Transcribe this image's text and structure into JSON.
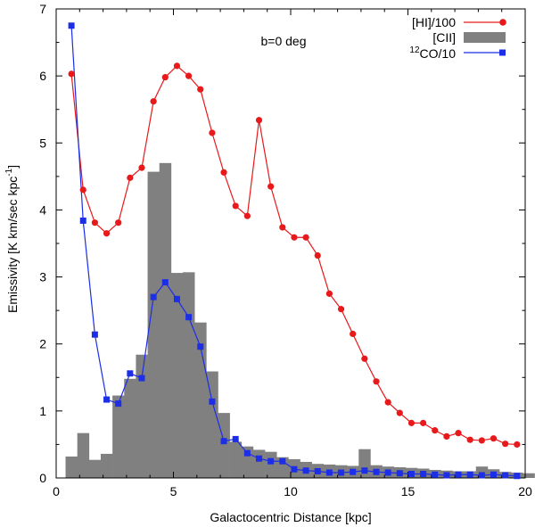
{
  "chart_data": {
    "type": "line",
    "annotation": "b=0 deg",
    "xlabel": "Galactocentric Distance [kpc]",
    "ylabel_main": "Emissivity [K km/sec kpc",
    "ylabel_sup": "-1",
    "ylabel_close": "]",
    "xlim": [
      0,
      20
    ],
    "ylim": [
      0,
      7
    ],
    "xticks": [
      0,
      5,
      10,
      15,
      20
    ],
    "yticks": [
      0,
      1,
      2,
      3,
      4,
      5,
      6,
      7
    ],
    "legend_position": "top-right",
    "colors": {
      "hi": "#e8191b",
      "cii": "#808080",
      "co": "#1c2ee6"
    },
    "legend": {
      "hi": "[HI]/100",
      "cii": "[CII]",
      "co_sup": "12",
      "co": "CO/10"
    },
    "cii_bars": {
      "name": "[CII]",
      "bin_width": 0.5,
      "x_start": 0.4,
      "values": [
        0.32,
        0.67,
        0.27,
        0.36,
        1.23,
        1.48,
        1.84,
        4.57,
        4.7,
        3.06,
        3.07,
        2.32,
        1.59,
        0.97,
        0.54,
        0.47,
        0.42,
        0.39,
        0.31,
        0.28,
        0.24,
        0.21,
        0.2,
        0.19,
        0.18,
        0.43,
        0.19,
        0.17,
        0.16,
        0.15,
        0.14,
        0.12,
        0.11,
        0.1,
        0.1,
        0.17,
        0.13,
        0.09,
        0.08,
        0.07
      ]
    },
    "series": [
      {
        "name": "[HI]/100",
        "x": [
          0.65,
          1.15,
          1.65,
          2.15,
          2.65,
          3.15,
          3.65,
          4.15,
          4.65,
          5.15,
          5.65,
          6.15,
          6.65,
          7.15,
          7.65,
          8.15,
          8.65,
          9.15,
          9.65,
          10.15,
          10.65,
          11.15,
          11.65,
          12.15,
          12.65,
          13.15,
          13.65,
          14.15,
          14.65,
          15.15,
          15.65,
          16.15,
          16.65,
          17.15,
          17.65,
          18.15,
          18.65,
          19.15,
          19.65
        ],
        "y": [
          6.03,
          4.3,
          3.81,
          3.65,
          3.81,
          4.48,
          4.63,
          5.62,
          5.98,
          6.15,
          6.0,
          5.8,
          5.15,
          4.56,
          4.06,
          3.91,
          5.34,
          4.35,
          3.74,
          3.59,
          3.59,
          3.32,
          2.75,
          2.52,
          2.15,
          1.78,
          1.44,
          1.13,
          0.97,
          0.82,
          0.82,
          0.71,
          0.62,
          0.67,
          0.57,
          0.56,
          0.59,
          0.51,
          0.5
        ]
      },
      {
        "name": "12CO/10",
        "x": [
          0.65,
          1.15,
          1.65,
          2.15,
          2.65,
          3.15,
          3.65,
          4.15,
          4.65,
          5.15,
          5.65,
          6.15,
          6.65,
          7.15,
          7.65,
          8.15,
          8.65,
          9.15,
          9.65,
          10.15,
          10.65,
          11.15,
          11.65,
          12.15,
          12.65,
          13.15,
          13.65,
          14.15,
          14.65,
          15.15,
          15.65,
          16.15,
          16.65,
          17.15,
          17.65,
          18.15,
          18.65,
          19.15,
          19.65
        ],
        "y": [
          6.75,
          3.84,
          2.14,
          1.17,
          1.11,
          1.56,
          1.49,
          2.7,
          2.92,
          2.67,
          2.4,
          1.96,
          1.14,
          0.55,
          0.58,
          0.37,
          0.29,
          0.25,
          0.25,
          0.13,
          0.11,
          0.1,
          0.08,
          0.08,
          0.09,
          0.11,
          0.09,
          0.08,
          0.07,
          0.06,
          0.06,
          0.05,
          0.04,
          0.05,
          0.05,
          0.04,
          0.05,
          0.04,
          0.03
        ]
      }
    ]
  }
}
